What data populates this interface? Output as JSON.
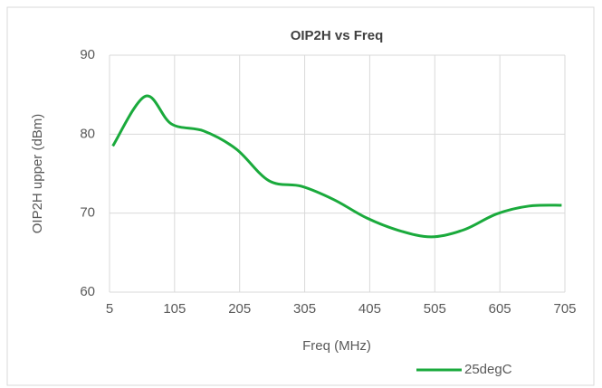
{
  "chart_data": {
    "type": "line",
    "title": "OIP2H vs Freq",
    "x_label": "Freq (MHz)",
    "y_label": "OIP2H upper (dBm)",
    "x": [
      10,
      60,
      100,
      150,
      200,
      250,
      300,
      350,
      400,
      450,
      500,
      550,
      600,
      650,
      700
    ],
    "series": [
      {
        "name": "25degC",
        "color": "#1aaa3c",
        "values": [
          78.5,
          84.8,
          81.3,
          80.4,
          78.1,
          74.1,
          73.4,
          71.7,
          69.4,
          67.8,
          67.0,
          67.9,
          69.9,
          70.9,
          71.0
        ]
      }
    ],
    "xlim": [
      5,
      705
    ],
    "xticks": [
      5,
      105,
      205,
      305,
      405,
      505,
      605,
      705
    ],
    "ylim": [
      60,
      90
    ],
    "yticks": [
      60,
      70,
      80,
      90
    ],
    "grid": true,
    "legend": "bottom-right"
  }
}
